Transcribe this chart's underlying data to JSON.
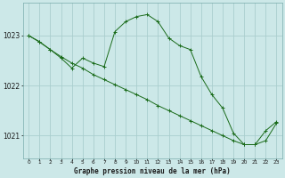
{
  "title": "Graphe pression niveau de la mer (hPa)",
  "bg_color": "#cce8e8",
  "grid_color": "#aacece",
  "line_color": "#1a6b1a",
  "xlim": [
    -0.5,
    23.5
  ],
  "ylim": [
    1020.55,
    1023.65
  ],
  "yticks": [
    1021,
    1022,
    1023
  ],
  "xticks": [
    0,
    1,
    2,
    3,
    4,
    5,
    6,
    7,
    8,
    9,
    10,
    11,
    12,
    13,
    14,
    15,
    16,
    17,
    18,
    19,
    20,
    21,
    22,
    23
  ],
  "series1_x": [
    0,
    1,
    2,
    3,
    4,
    5,
    6,
    7,
    8,
    9,
    10,
    11,
    12,
    13,
    14,
    15,
    16,
    17,
    18,
    19,
    20,
    21,
    22,
    23
  ],
  "series1_y": [
    1023.0,
    1022.88,
    1022.72,
    1022.58,
    1022.45,
    1022.35,
    1022.22,
    1022.12,
    1022.02,
    1021.92,
    1021.82,
    1021.72,
    1021.6,
    1021.5,
    1021.4,
    1021.3,
    1021.2,
    1021.1,
    1021.0,
    1020.9,
    1020.82,
    1020.82,
    1020.9,
    1021.25
  ],
  "series2_x": [
    0,
    1,
    2,
    3,
    4,
    5,
    6,
    7,
    8,
    9,
    10,
    11,
    12,
    13,
    14,
    15,
    16,
    17,
    18,
    19,
    20,
    21,
    22,
    23
  ],
  "series2_y": [
    1023.0,
    1022.87,
    1022.72,
    1022.55,
    1022.35,
    1022.55,
    1022.45,
    1022.38,
    1023.08,
    1023.28,
    1023.38,
    1023.42,
    1023.28,
    1022.95,
    1022.8,
    1022.72,
    1022.18,
    1021.82,
    1021.55,
    1021.05,
    1020.82,
    1020.82,
    1021.1,
    1021.28
  ]
}
